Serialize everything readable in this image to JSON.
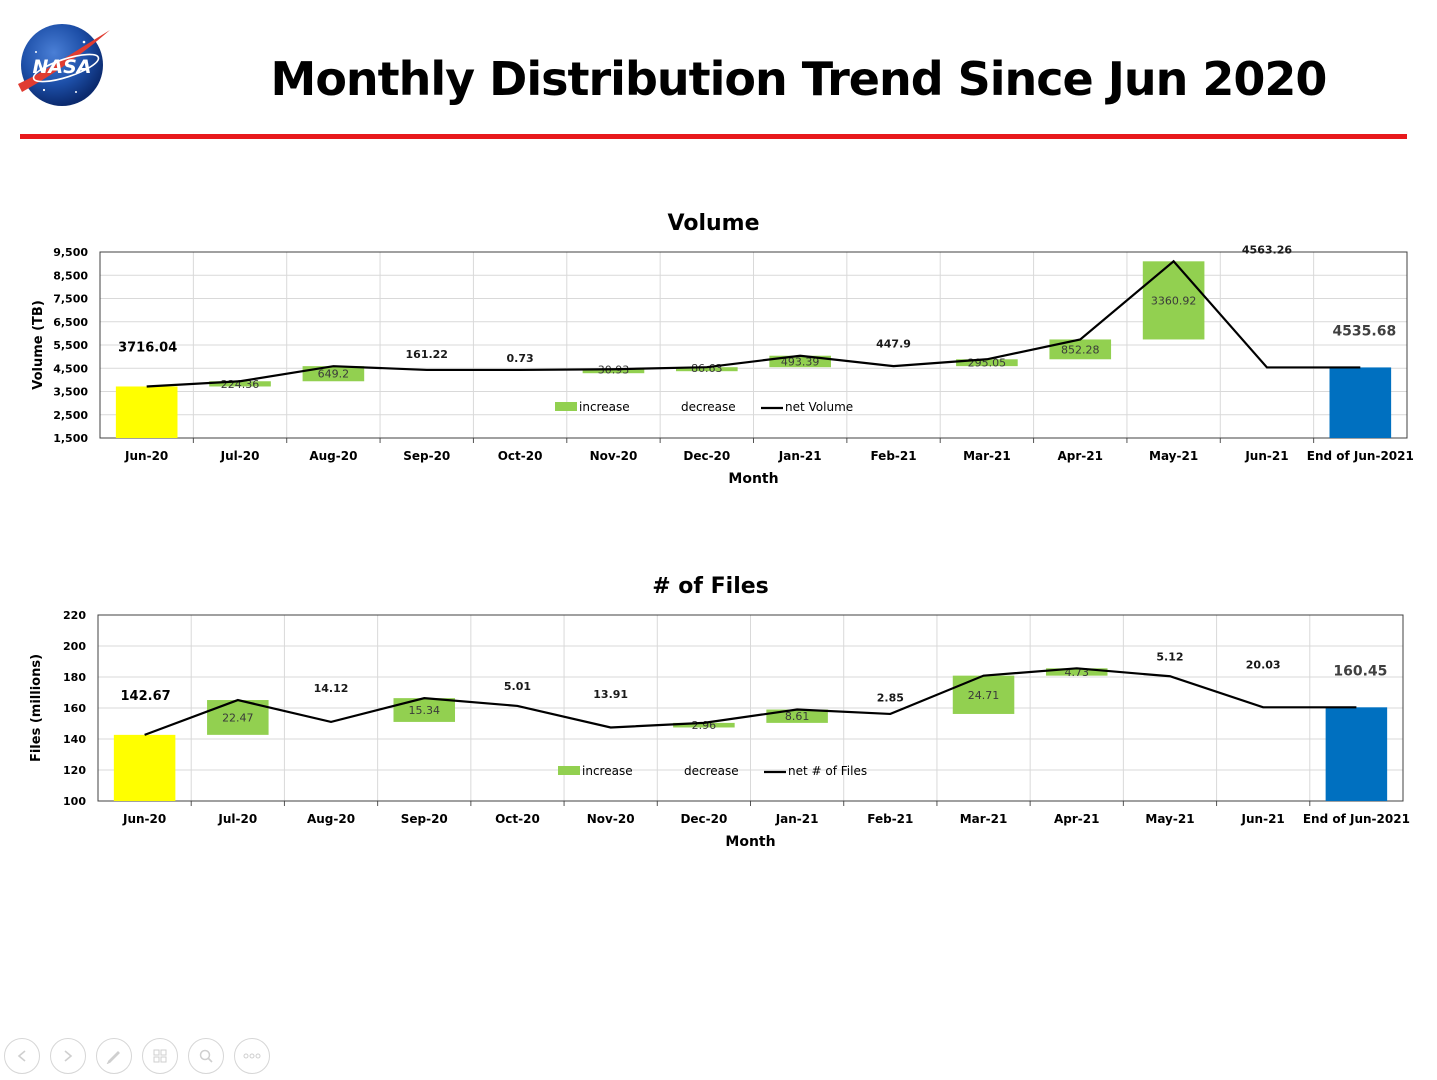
{
  "header": {
    "title": "Monthly Distribution Trend Since Jun 2020",
    "logo_text": "NASA",
    "accent_color": "#e8191c"
  },
  "colors": {
    "increase": "#92d050",
    "start_bar": "#ffff00",
    "end_bar": "#0070c0",
    "net_line": "#000000"
  },
  "nav": {
    "icons": [
      "previous-icon",
      "next-icon",
      "pen-icon",
      "slides-icon",
      "zoom-icon",
      "more-icon"
    ]
  },
  "chart_data": [
    {
      "type": "bar",
      "subtype": "waterfall",
      "title": "Volume",
      "xlabel": "Month",
      "ylabel": "Volume (TB)",
      "ylim": [
        1500,
        9500
      ],
      "yticks": [
        1500,
        2500,
        3500,
        4500,
        5500,
        6500,
        7500,
        8500,
        9500
      ],
      "ytick_labels": [
        "1,500",
        "2,500",
        "3,500",
        "4,500",
        "5,500",
        "6,500",
        "7,500",
        "8,500",
        "9,500"
      ],
      "categories": [
        "Jun-20",
        "Jul-20",
        "Aug-20",
        "Sep-20",
        "Oct-20",
        "Nov-20",
        "Dec-20",
        "Jan-21",
        "Feb-21",
        "Mar-21",
        "Apr-21",
        "May-21",
        "Jun-21",
        "End of Jun-2021"
      ],
      "start": {
        "category": "Jun-20",
        "value": 3716.04,
        "label": "3716.04"
      },
      "end": {
        "category": "End of Jun-2021",
        "value": 4535.68,
        "label": "4535.68"
      },
      "changes": [
        {
          "category": "Jul-20",
          "value": 224.36,
          "direction": "increase",
          "label": "224.36"
        },
        {
          "category": "Aug-20",
          "value": 649.2,
          "direction": "increase",
          "label": "649.2"
        },
        {
          "category": "Sep-20",
          "value": 161.22,
          "direction": "decrease",
          "label": "161.22"
        },
        {
          "category": "Oct-20",
          "value": 0.73,
          "direction": "decrease",
          "label": "0.73"
        },
        {
          "category": "Nov-20",
          "value": 30.93,
          "direction": "increase",
          "label": "30.93"
        },
        {
          "category": "Dec-20",
          "value": 86.63,
          "direction": "increase",
          "label": "86.63"
        },
        {
          "category": "Jan-21",
          "value": 493.39,
          "direction": "increase",
          "label": "493.39"
        },
        {
          "category": "Feb-21",
          "value": 447.9,
          "direction": "decrease",
          "label": "447.9"
        },
        {
          "category": "Mar-21",
          "value": 295.05,
          "direction": "increase",
          "label": "295.05"
        },
        {
          "category": "Apr-21",
          "value": 852.28,
          "direction": "increase",
          "label": "852.28"
        },
        {
          "category": "May-21",
          "value": 3360.92,
          "direction": "increase",
          "label": "3360.92"
        },
        {
          "category": "Jun-21",
          "value": 4563.26,
          "direction": "decrease",
          "label": "4563.26"
        }
      ],
      "legend": [
        "increase",
        "decrease",
        "net Volume"
      ],
      "legend_position": "inside-bottom-center",
      "grid": true
    },
    {
      "type": "bar",
      "subtype": "waterfall",
      "title": "# of Files",
      "xlabel": "Month",
      "ylabel": "Files (millions)",
      "ylim": [
        100,
        220
      ],
      "yticks": [
        100,
        120,
        140,
        160,
        180,
        200,
        220
      ],
      "ytick_labels": [
        "100",
        "120",
        "140",
        "160",
        "180",
        "200",
        "220"
      ],
      "categories": [
        "Jun-20",
        "Jul-20",
        "Aug-20",
        "Sep-20",
        "Oct-20",
        "Nov-20",
        "Dec-20",
        "Jan-21",
        "Feb-21",
        "Mar-21",
        "Apr-21",
        "May-21",
        "Jun-21",
        "End of Jun-2021"
      ],
      "start": {
        "category": "Jun-20",
        "value": 142.67,
        "label": "142.67"
      },
      "end": {
        "category": "End of Jun-2021",
        "value": 160.45,
        "label": "160.45"
      },
      "changes": [
        {
          "category": "Jul-20",
          "value": 22.47,
          "direction": "increase",
          "label": "22.47"
        },
        {
          "category": "Aug-20",
          "value": 14.12,
          "direction": "decrease",
          "label": "14.12"
        },
        {
          "category": "Sep-20",
          "value": 15.34,
          "direction": "increase",
          "label": "15.34"
        },
        {
          "category": "Oct-20",
          "value": 5.01,
          "direction": "decrease",
          "label": "5.01"
        },
        {
          "category": "Nov-20",
          "value": 13.91,
          "direction": "decrease",
          "label": "13.91"
        },
        {
          "category": "Dec-20",
          "value": 2.96,
          "direction": "increase",
          "label": "2.96"
        },
        {
          "category": "Jan-21",
          "value": 8.61,
          "direction": "increase",
          "label": "8.61"
        },
        {
          "category": "Feb-21",
          "value": 2.85,
          "direction": "decrease",
          "label": "2.85"
        },
        {
          "category": "Mar-21",
          "value": 24.71,
          "direction": "increase",
          "label": "24.71"
        },
        {
          "category": "Apr-21",
          "value": 4.73,
          "direction": "increase",
          "label": "4.73"
        },
        {
          "category": "May-21",
          "value": 5.12,
          "direction": "decrease",
          "label": "5.12"
        },
        {
          "category": "Jun-21",
          "value": 20.03,
          "direction": "decrease",
          "label": "20.03"
        }
      ],
      "legend": [
        "increase",
        "decrease",
        "net # of Files"
      ],
      "legend_position": "inside-bottom-center",
      "grid": true
    }
  ]
}
